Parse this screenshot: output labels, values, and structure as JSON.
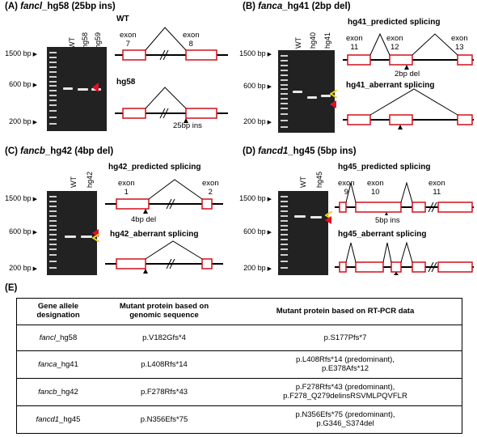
{
  "panelA": {
    "title_prefix": "(A) ",
    "title_gene": "fancl",
    "title_suffix": "_hg58 (25bp ins)",
    "bp": [
      "1500 bp",
      "600 bp",
      "200 bp"
    ],
    "lanes": [
      "WT",
      "hg58",
      "hg59"
    ],
    "wt_label": "WT",
    "exon7": "exon\n7",
    "exon8": "exon\n8",
    "mut_label": "hg58",
    "ins_label": "25bp ins"
  },
  "panelB": {
    "title_prefix": "(B) ",
    "title_gene": "fanca",
    "title_suffix": "_hg41 (2bp del)",
    "bp": [
      "1500 bp",
      "600 bp",
      "200 bp"
    ],
    "lanes": [
      "WT",
      "hg40",
      "hg41"
    ],
    "predicted": "hg41_predicted splicing",
    "exon11": "exon\n11",
    "exon12": "exon\n12",
    "exon13": "exon\n13",
    "del_label": "2bp del",
    "aberrant": "hg41_aberrant splicing"
  },
  "panelC": {
    "title_prefix": "(C) ",
    "title_gene": "fancb",
    "title_suffix": "_hg42 (4bp del)",
    "bp": [
      "1500 bp",
      "600 bp",
      "200 bp"
    ],
    "lanes": [
      "WT",
      "hg42"
    ],
    "predicted": "hg42_predicted splicing",
    "exon1": "exon\n1",
    "exon2": "exon\n2",
    "del_label": "4bp del",
    "aberrant": "hg42_aberrant splicing"
  },
  "panelD": {
    "title_prefix": "(D) ",
    "title_gene": "fancd1",
    "title_suffix": "_hg45 (5bp ins)",
    "bp": [
      "1500 bp",
      "600 bp",
      "200 bp"
    ],
    "lanes": [
      "WT",
      "hg45"
    ],
    "predicted": "hg45_predicted splicing",
    "exon9": "exon\n9",
    "exon10": "exon\n10",
    "exon11": "exon\n11",
    "ins_label": "5bp ins",
    "aberrant": "hg45_aberrant splicing"
  },
  "panelE": {
    "title": "(E)",
    "headers": [
      "Gene allele\ndesignation",
      "Mutant protein based on\ngenomic sequence",
      "Mutant protein based on RT-PCR data"
    ],
    "rows": [
      {
        "gene": "fancl",
        "allele": "_hg58",
        "genomic": "p.V182Gfs*4",
        "rtpcr": "p.S177Pfs*7"
      },
      {
        "gene": "fanca",
        "allele": "_hg41",
        "genomic": "p.L408Rfs*14",
        "rtpcr": "p.L408Rfs*14 (predominant),\np.E378Afs*12"
      },
      {
        "gene": "fancb",
        "allele": "_hg42",
        "genomic": "p.F278Rfs*43",
        "rtpcr": "p.F278Rfs*43 (predominant),\np.F278_Q279delinsRSVMLPQVFLR"
      },
      {
        "gene": "fancd1",
        "allele": "_hg45",
        "genomic": "p.N356Efs*75",
        "rtpcr": "p.N356Efs*75 (predominant),\np.G346_S374del"
      }
    ]
  },
  "colors": {
    "exon": "#d0101a",
    "gel": "#222222",
    "arrow_red": "#e0102a",
    "arrow_yellow": "#f2d21a"
  }
}
